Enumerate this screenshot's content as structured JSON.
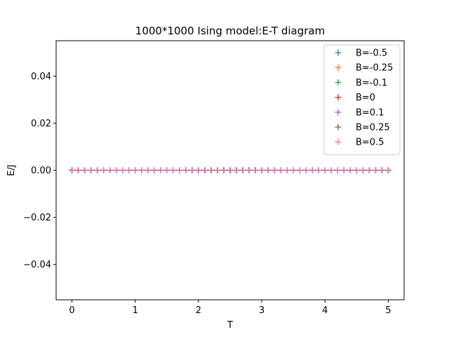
{
  "chart_data": {
    "type": "scatter",
    "title": "1000*1000 Ising model:E-T diagram",
    "xlabel": "T",
    "ylabel": "E/J",
    "xlim": [
      -0.25,
      5.25
    ],
    "ylim": [
      -0.055,
      0.055
    ],
    "x_ticks": [
      0,
      1,
      2,
      3,
      4,
      5
    ],
    "x_tick_labels": [
      "0",
      "1",
      "2",
      "3",
      "4",
      "5"
    ],
    "y_ticks": [
      -0.04,
      -0.02,
      0.0,
      0.02,
      0.04
    ],
    "y_tick_labels": [
      "−0.04",
      "−0.02",
      "0.00",
      "0.02",
      "0.04"
    ],
    "grid": false,
    "legend_position": "top-right",
    "marker": "plus",
    "x_range": {
      "start": 0,
      "stop": 5,
      "count": 51
    },
    "series": [
      {
        "name": "B=-0.5",
        "color": "#1f77b4",
        "y_constant": 0.0
      },
      {
        "name": "B=-0.25",
        "color": "#ff7f0e",
        "y_constant": 0.0
      },
      {
        "name": "B=-0.1",
        "color": "#2ca02c",
        "y_constant": 0.0
      },
      {
        "name": "B=0",
        "color": "#d62728",
        "y_constant": 0.0
      },
      {
        "name": "B=0.1",
        "color": "#9467bd",
        "y_constant": 0.0
      },
      {
        "name": "B=0.25",
        "color": "#8c564b",
        "y_constant": 0.0
      },
      {
        "name": "B=0.5",
        "color": "#e377c2",
        "y_constant": 0.0
      }
    ]
  }
}
